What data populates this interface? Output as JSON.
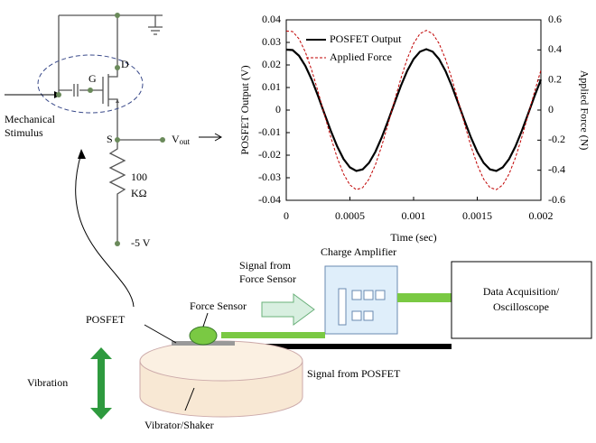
{
  "chart_data": {
    "type": "line",
    "x_label": "Time (sec)",
    "y_label": "POSFET Output (V)",
    "y2_label": "Applied Force (N)",
    "x": [
      0,
      5e-05,
      0.0001,
      0.00015,
      0.0002,
      0.00025,
      0.0003,
      0.00035,
      0.0004,
      0.00045,
      0.0005,
      0.00055,
      0.0006,
      0.00065,
      0.0007,
      0.00075,
      0.0008,
      0.00085,
      0.0009,
      0.00095,
      0.001,
      0.00105,
      0.0011,
      0.00115,
      0.0012,
      0.00125,
      0.0013,
      0.00135,
      0.0014,
      0.00145,
      0.0015,
      0.00155,
      0.0016,
      0.00165,
      0.0017,
      0.00175,
      0.0018,
      0.00185,
      0.0019,
      0.00195,
      0.002
    ],
    "series": [
      {
        "name": "POSFET Output",
        "color": "#000000",
        "style": "solid",
        "axis": "y",
        "values": [
          0.0268,
          0.0266,
          0.0241,
          0.0196,
          0.0135,
          0.0062,
          -0.0016,
          -0.0092,
          -0.0161,
          -0.0217,
          -0.0254,
          -0.027,
          -0.0263,
          -0.0234,
          -0.0185,
          -0.0121,
          -0.0047,
          0.0031,
          0.0107,
          0.0174,
          0.0226,
          0.0259,
          0.027,
          0.0259,
          0.0226,
          0.0174,
          0.0107,
          0.0031,
          -0.0047,
          -0.0121,
          -0.0185,
          -0.0234,
          -0.0263,
          -0.027,
          -0.0254,
          -0.0217,
          -0.0161,
          -0.0092,
          -0.0016,
          0.0062,
          0.0135
        ]
      },
      {
        "name": "Applied Force",
        "color": "#c00000",
        "style": "dashed",
        "axis": "y2",
        "values": [
          0.526,
          0.522,
          0.474,
          0.386,
          0.265,
          0.122,
          -0.031,
          -0.181,
          -0.317,
          -0.425,
          -0.498,
          -0.529,
          -0.516,
          -0.459,
          -0.364,
          -0.238,
          -0.092,
          0.062,
          0.21,
          0.341,
          0.443,
          0.508,
          0.53,
          0.508,
          0.443,
          0.341,
          0.21,
          0.062,
          -0.092,
          -0.238,
          -0.364,
          -0.459,
          -0.516,
          -0.529,
          -0.498,
          -0.425,
          -0.317,
          -0.181,
          -0.031,
          0.122,
          0.265
        ]
      }
    ],
    "xlim": [
      0,
      0.002
    ],
    "xticks": [
      0,
      0.0005,
      0.001,
      0.0015,
      0.002
    ],
    "ylim": [
      -0.04,
      0.04
    ],
    "yticks": [
      -0.04,
      -0.03,
      -0.02,
      -0.01,
      0,
      0.01,
      0.02,
      0.03,
      0.04
    ],
    "y2lim": [
      -0.6,
      0.6
    ],
    "y2ticks": [
      -0.6,
      -0.4,
      -0.2,
      0,
      0.2,
      0.4,
      0.6
    ],
    "grid": false,
    "legend": "top-left"
  },
  "circuit": {
    "stimulus": [
      "Mechanical",
      "Stimulus"
    ],
    "gate": "G",
    "drain": "D",
    "source": "S",
    "vout": {
      "main": "V",
      "sub": "out"
    },
    "resistor": [
      "100",
      "KΩ"
    ],
    "supply": "-5 V"
  },
  "setup": {
    "signal_force": [
      "Signal from",
      "Force Sensor"
    ],
    "amplifier": "Charge Amplifier",
    "daq": [
      "Data Acquisition/",
      "Oscilloscope"
    ],
    "posfet": "POSFET",
    "force_sensor": "Force Sensor",
    "signal_posfet": "Signal from POSFET",
    "vibration": "Vibration",
    "shaker": "Vibrator/Shaker"
  }
}
